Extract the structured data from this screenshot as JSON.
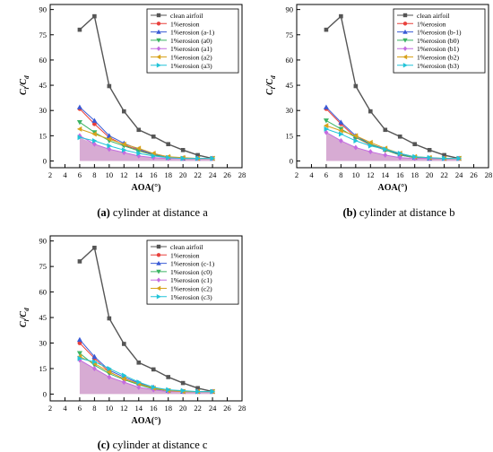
{
  "colors": {
    "clean": "#555555",
    "erosion": "#e8403c",
    "e_m1": "#3a5bd6",
    "e_0": "#3cb464",
    "e_1": "#c46be0",
    "e_2": "#d8a21c",
    "e_3": "#22c4d8",
    "fill": "#c98fc4"
  },
  "chart_data": [
    {
      "type": "line",
      "caption_prefix": "(a)",
      "caption_text": " cylinder at distance a",
      "xlabel": "AOA(°)",
      "ylabel_main": "C",
      "ylabel_sub1": "l",
      "ylabel_slash": "/C",
      "ylabel_sub2": "d",
      "xlim": [
        2,
        28
      ],
      "ylim": [
        -4,
        93
      ],
      "xticks": [
        "2",
        "4",
        "6",
        "8",
        "10",
        "12",
        "14",
        "16",
        "18",
        "20",
        "22",
        "24",
        "26",
        "28"
      ],
      "yticks": [
        "0",
        "15",
        "30",
        "45",
        "60",
        "75",
        "90"
      ],
      "x": [
        6,
        8,
        10,
        12,
        14,
        16,
        18,
        20,
        22,
        24
      ],
      "series": [
        {
          "name": "clean airfoil",
          "values": [
            78,
            86,
            44.5,
            29.5,
            18.5,
            14.5,
            10,
            6.5,
            3.5,
            1.5
          ]
        },
        {
          "name": "1%erosion",
          "values": [
            31,
            22,
            14,
            9.5,
            6.5,
            3.5,
            2,
            1.5,
            1.5,
            1.5
          ]
        },
        {
          "name": "1%erosion (a-1)",
          "values": [
            32,
            24,
            15,
            10.5,
            7,
            4,
            2,
            1.5,
            1.5,
            1.5
          ]
        },
        {
          "name": "1%erosion (a0)",
          "values": [
            23,
            17,
            12,
            9,
            6,
            3.5,
            2,
            1.5,
            1.5,
            1.5
          ]
        },
        {
          "name": "1%erosion (a1)",
          "values": [
            15,
            10,
            7,
            5,
            3,
            2,
            1.5,
            1.5,
            1.5,
            1.5
          ]
        },
        {
          "name": "1%erosion (a2)",
          "values": [
            19,
            16,
            13,
            10,
            7.5,
            4.5,
            2.5,
            2,
            1.5,
            1.5
          ]
        },
        {
          "name": "1%erosion (a3)",
          "values": [
            14,
            12,
            9,
            6.5,
            4.5,
            3,
            2,
            1.5,
            1.5,
            1.5
          ]
        }
      ]
    },
    {
      "type": "line",
      "caption_prefix": "(b)",
      "caption_text": " cylinder at distance b",
      "xlabel": "AOA(°)",
      "ylabel_main": "C",
      "ylabel_sub1": "l",
      "ylabel_slash": "/C",
      "ylabel_sub2": "d",
      "xlim": [
        2,
        28
      ],
      "ylim": [
        -4,
        93
      ],
      "xticks": [
        "2",
        "4",
        "6",
        "8",
        "10",
        "12",
        "14",
        "16",
        "18",
        "20",
        "22",
        "24",
        "26",
        "28"
      ],
      "yticks": [
        "0",
        "15",
        "30",
        "45",
        "60",
        "75",
        "90"
      ],
      "x": [
        6,
        8,
        10,
        12,
        14,
        16,
        18,
        20,
        22,
        24
      ],
      "series": [
        {
          "name": "clean airfoil",
          "values": [
            78,
            86,
            44.5,
            29.5,
            18.5,
            14.5,
            10,
            6.5,
            3.5,
            1.5
          ]
        },
        {
          "name": "1%erosion",
          "values": [
            31,
            22,
            14,
            9.5,
            6.5,
            3.5,
            2,
            1.5,
            1.5,
            1.5
          ]
        },
        {
          "name": "1%erosion (b-1)",
          "values": [
            32,
            23,
            15,
            10,
            7,
            4,
            2,
            1.5,
            1.5,
            1.5
          ]
        },
        {
          "name": "1%erosion (b0)",
          "values": [
            24,
            19,
            14,
            10,
            6.5,
            3.5,
            2,
            1.5,
            1.5,
            1.5
          ]
        },
        {
          "name": "1%erosion (b1)",
          "values": [
            17,
            12,
            8,
            5.5,
            3.5,
            2,
            1.5,
            1.5,
            1.5,
            1.5
          ]
        },
        {
          "name": "1%erosion (b2)",
          "values": [
            21,
            18,
            15,
            11,
            7.5,
            4.5,
            2.5,
            2,
            1.5,
            1.5
          ]
        },
        {
          "name": "1%erosion (b3)",
          "values": [
            19,
            16,
            12,
            9,
            7,
            4.5,
            2.5,
            2,
            1.5,
            1.5
          ]
        }
      ]
    },
    {
      "type": "line",
      "caption_prefix": "(c)",
      "caption_text": " cylinder at distance c",
      "xlabel": "AOA(°)",
      "ylabel_main": "C",
      "ylabel_sub1": "l",
      "ylabel_slash": "/C",
      "ylabel_sub2": "d",
      "xlim": [
        2,
        28
      ],
      "ylim": [
        -4,
        93
      ],
      "xticks": [
        "2",
        "4",
        "6",
        "8",
        "10",
        "12",
        "14",
        "16",
        "18",
        "20",
        "22",
        "24",
        "26",
        "28"
      ],
      "yticks": [
        "0",
        "15",
        "30",
        "45",
        "60",
        "75",
        "90"
      ],
      "x": [
        6,
        8,
        10,
        12,
        14,
        16,
        18,
        20,
        22,
        24
      ],
      "series": [
        {
          "name": "clean airfoil",
          "values": [
            78,
            86,
            44.5,
            29.5,
            18.5,
            14.5,
            10,
            6.5,
            3.5,
            1.5
          ]
        },
        {
          "name": "1%erosion",
          "values": [
            30,
            21,
            13,
            9,
            6,
            3.5,
            2,
            1.5,
            1.5,
            1.5
          ]
        },
        {
          "name": "1%erosion (c-1)",
          "values": [
            32,
            22,
            14,
            10,
            6.5,
            4,
            2,
            1.5,
            1.5,
            1.5
          ]
        },
        {
          "name": "1%erosion (c0)",
          "values": [
            24,
            17,
            12,
            8.5,
            5.5,
            3,
            2,
            1.5,
            1.5,
            1.5
          ]
        },
        {
          "name": "1%erosion (c1)",
          "values": [
            20,
            15,
            10,
            7,
            4,
            2.5,
            1.5,
            1.5,
            1.5,
            1.5
          ]
        },
        {
          "name": "1%erosion (c2)",
          "values": [
            22,
            18,
            13,
            9,
            6,
            3.5,
            2,
            1.5,
            1.5,
            1.5
          ]
        },
        {
          "name": "1%erosion (c3)",
          "values": [
            21,
            19,
            15,
            11,
            7,
            4,
            2.5,
            2,
            1.5,
            1.5
          ]
        }
      ]
    }
  ]
}
